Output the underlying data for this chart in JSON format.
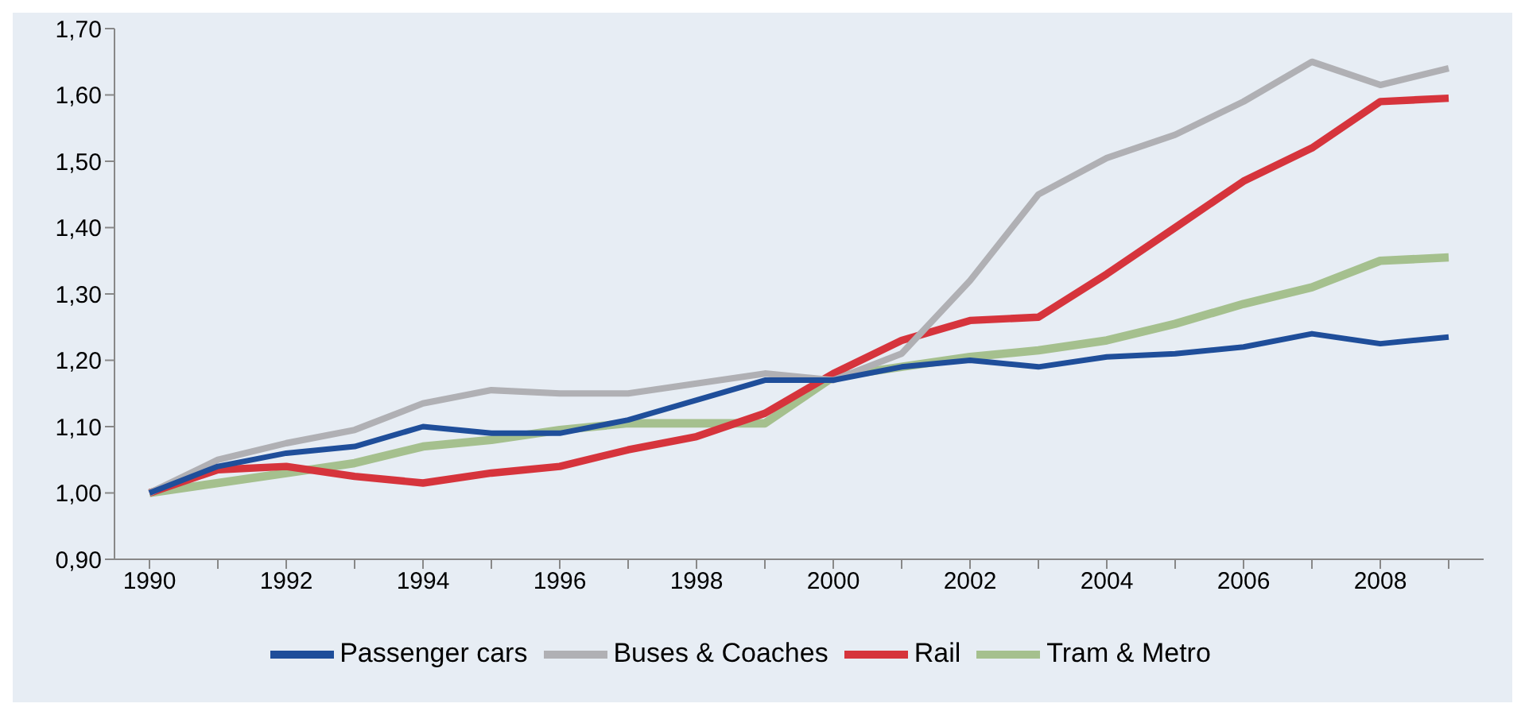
{
  "chart_data": {
    "type": "line",
    "categories": [
      "1990",
      null,
      "1992",
      null,
      "1994",
      null,
      "1996",
      null,
      "1998",
      null,
      "2000",
      null,
      "2002",
      null,
      "2004",
      null,
      "2006",
      null,
      "2008",
      null
    ],
    "series": [
      {
        "name": "Passenger cars",
        "color": "#1f4e9a",
        "values": [
          1.0,
          1.04,
          1.06,
          1.07,
          1.1,
          1.09,
          1.09,
          1.11,
          1.14,
          1.17,
          1.17,
          1.19,
          1.2,
          1.19,
          1.205,
          1.21,
          1.22,
          1.24,
          1.225,
          1.235
        ]
      },
      {
        "name": "Buses & Coaches",
        "color": "#b0b0b4",
        "values": [
          1.0,
          1.05,
          1.075,
          1.095,
          1.135,
          1.155,
          1.15,
          1.15,
          1.165,
          1.18,
          1.17,
          1.21,
          1.32,
          1.45,
          1.505,
          1.54,
          1.59,
          1.65,
          1.615,
          1.64
        ]
      },
      {
        "name": "Rail",
        "color": "#d6343c",
        "values": [
          1.0,
          1.035,
          1.04,
          1.025,
          1.015,
          1.03,
          1.04,
          1.065,
          1.085,
          1.12,
          1.18,
          1.23,
          1.26,
          1.265,
          1.33,
          1.4,
          1.47,
          1.52,
          1.59,
          1.595
        ]
      },
      {
        "name": "Tram & Metro",
        "color": "#a5c08e",
        "values": [
          1.0,
          1.015,
          1.03,
          1.045,
          1.07,
          1.08,
          1.095,
          1.105,
          1.105,
          1.105,
          1.175,
          1.19,
          1.205,
          1.215,
          1.23,
          1.255,
          1.285,
          1.31,
          1.35,
          1.355
        ]
      }
    ],
    "ylim": [
      0.9,
      1.7
    ],
    "yticks": [
      {
        "value": 0.9,
        "label": "0,90"
      },
      {
        "value": 1.0,
        "label": "1,00"
      },
      {
        "value": 1.1,
        "label": "1,10"
      },
      {
        "value": 1.2,
        "label": "1,20"
      },
      {
        "value": 1.3,
        "label": "1,30"
      },
      {
        "value": 1.4,
        "label": "1,40"
      },
      {
        "value": 1.5,
        "label": "1,50"
      },
      {
        "value": 1.6,
        "label": "1,60"
      },
      {
        "value": 1.7,
        "label": "1,70"
      }
    ],
    "grid": false,
    "legend": "bottom",
    "marker": "none",
    "line_style": "solid"
  }
}
